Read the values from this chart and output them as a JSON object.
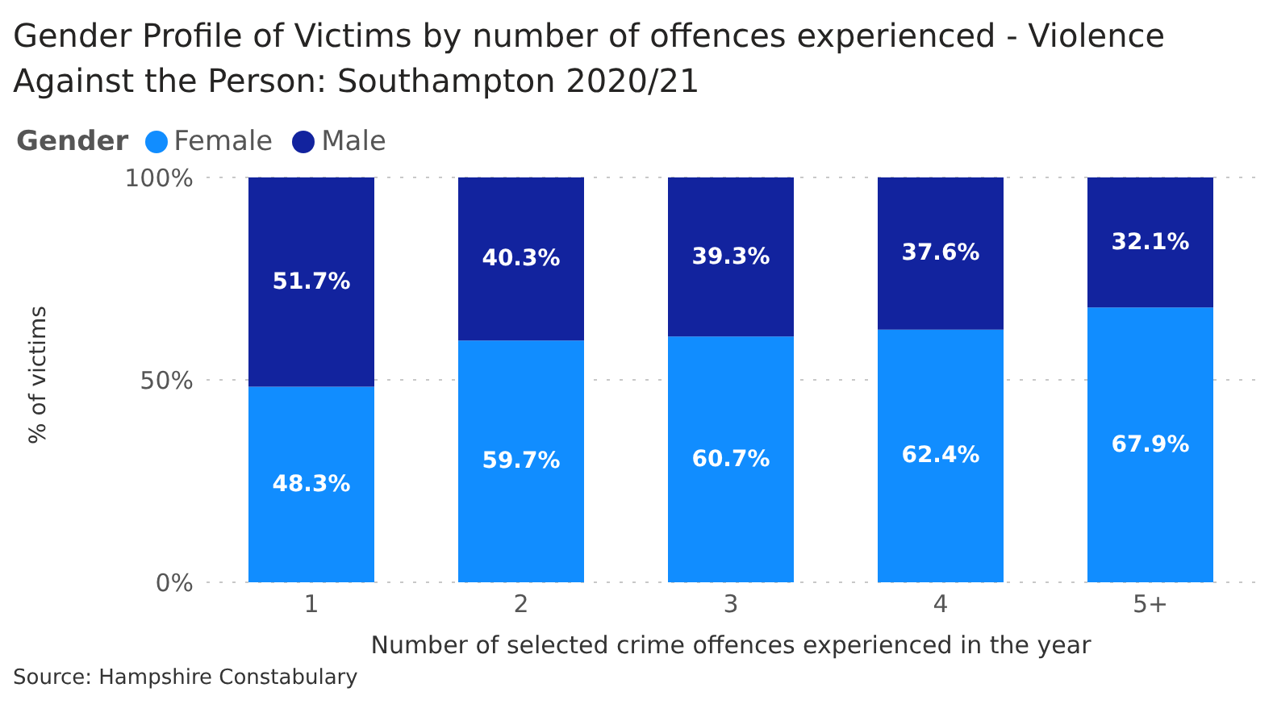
{
  "chart_data": {
    "type": "bar",
    "title": "Gender Profile of Victims by number of offences experienced - Violence Against the Person: Southampton 2020/21",
    "legend_title": "Gender",
    "xlabel": "Number of selected crime offences experienced in the year",
    "ylabel": "% of victims",
    "annotations": [
      "Source: Hampshire Constabulary"
    ],
    "categories": [
      "1",
      "2",
      "3",
      "4",
      "5+"
    ],
    "stacked": true,
    "series": [
      {
        "name": "Female",
        "color": "#118dff",
        "values": [
          48.3,
          59.7,
          60.7,
          62.4,
          67.9
        ],
        "value_labels": [
          "48.3%",
          "59.7%",
          "60.7%",
          "62.4%",
          "67.9%"
        ]
      },
      {
        "name": "Male",
        "color": "#12239e",
        "values": [
          51.7,
          40.3,
          39.3,
          37.6,
          32.1
        ],
        "value_labels": [
          "51.7%",
          "40.3%",
          "39.3%",
          "37.6%",
          "32.1%"
        ]
      }
    ],
    "ylim": [
      0,
      100
    ],
    "yticks": [
      {
        "value": 0,
        "label": "0%"
      },
      {
        "value": 50,
        "label": "50%"
      },
      {
        "value": 100,
        "label": "100%"
      }
    ],
    "grid": "y",
    "legend": "top left"
  }
}
